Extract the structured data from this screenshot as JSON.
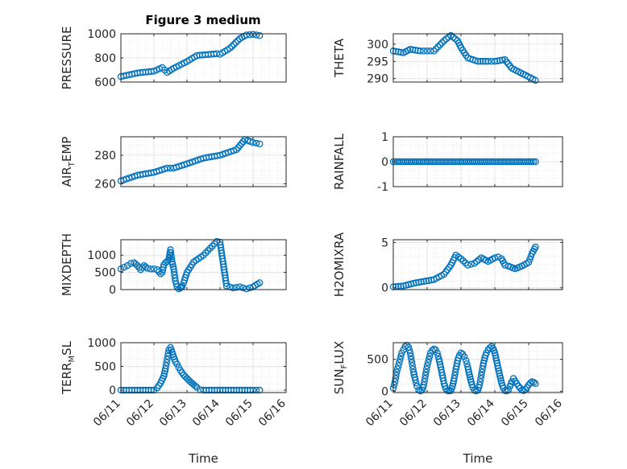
{
  "figure": {
    "title": "Figure 3 medium"
  },
  "x_ticks": [
    "06/11",
    "06/12",
    "06/13",
    "06/14",
    "06/15",
    "06/16"
  ],
  "x_label": "Time",
  "chart_data": [
    {
      "type": "scatter",
      "ylabel": "PRESSURE",
      "xlim": [
        "06/11",
        "06/16"
      ],
      "ylim": [
        600,
        1000
      ],
      "yticks": [
        600,
        800,
        1000
      ],
      "grid": true,
      "series": [
        {
          "x": [
            11.0,
            11.5,
            12.0,
            12.25,
            12.4,
            12.6,
            13.0,
            13.3,
            13.9,
            14.0,
            14.3,
            14.6,
            14.8,
            15.0,
            15.2
          ],
          "y": [
            645,
            675,
            690,
            720,
            680,
            715,
            770,
            820,
            835,
            830,
            880,
            960,
            990,
            995,
            985
          ]
        }
      ]
    },
    {
      "type": "scatter",
      "ylabel": "THETA",
      "xlim": [
        "06/11",
        "06/16"
      ],
      "ylim": [
        289,
        303
      ],
      "yticks": [
        290,
        295,
        300
      ],
      "grid": true,
      "series": [
        {
          "x": [
            11.0,
            11.3,
            11.5,
            11.8,
            12.0,
            12.2,
            12.5,
            12.7,
            12.9,
            13.0,
            13.2,
            13.5,
            13.8,
            14.0,
            14.3,
            14.5,
            14.7,
            14.9,
            15.2
          ],
          "y": [
            298,
            297.5,
            298.5,
            298,
            298,
            298,
            301,
            302.5,
            301,
            299,
            296,
            295,
            295,
            295,
            295.5,
            293,
            292,
            291,
            289.5
          ]
        }
      ]
    },
    {
      "type": "scatter",
      "ylabel": "AIR_TEMP",
      "xlim": [
        "06/11",
        "06/16"
      ],
      "ylim": [
        258,
        293
      ],
      "yticks": [
        260,
        280
      ],
      "grid": true,
      "series": [
        {
          "x": [
            11.0,
            11.5,
            12.0,
            12.4,
            12.6,
            13.0,
            13.5,
            14.0,
            14.5,
            14.75,
            15.0,
            15.2
          ],
          "y": [
            262,
            266,
            268,
            271,
            271,
            274,
            278,
            280,
            284,
            291,
            289,
            288
          ]
        }
      ]
    },
    {
      "type": "scatter",
      "ylabel": "RAINFALL",
      "xlim": [
        "06/11",
        "06/16"
      ],
      "ylim": [
        -1,
        1
      ],
      "yticks": [
        -1,
        0,
        1
      ],
      "grid": true,
      "series": [
        {
          "x": [
            11.0,
            15.2
          ],
          "y": [
            0,
            0
          ]
        }
      ]
    },
    {
      "type": "scatter",
      "ylabel": "MIXDEPTH",
      "xlim": [
        "06/11",
        "06/16"
      ],
      "ylim": [
        0,
        1450
      ],
      "yticks": [
        0,
        500,
        1000
      ],
      "grid": true,
      "series": [
        {
          "x": [
            11.0,
            11.1,
            11.2,
            11.3,
            11.4,
            11.5,
            11.6,
            11.7,
            11.8,
            11.9,
            12.0,
            12.1,
            12.15,
            12.2,
            12.25,
            12.3,
            12.35,
            12.45,
            12.5,
            12.55,
            12.6,
            12.65,
            12.7,
            12.75,
            12.8,
            12.83,
            12.86,
            12.9,
            12.95,
            13.0,
            13.1,
            13.2,
            13.5,
            13.7,
            13.9,
            14.0,
            14.2,
            14.4,
            14.6,
            14.8,
            15.0,
            15.2
          ],
          "y": [
            600,
            650,
            700,
            760,
            780,
            700,
            580,
            700,
            620,
            600,
            600,
            580,
            520,
            460,
            500,
            720,
            780,
            860,
            1160,
            800,
            600,
            250,
            80,
            20,
            50,
            70,
            100,
            200,
            350,
            500,
            650,
            800,
            1000,
            1200,
            1400,
            1380,
            100,
            50,
            80,
            20,
            80,
            200
          ]
        }
      ]
    },
    {
      "type": "scatter",
      "ylabel": "H2OMIXRA",
      "xlim": [
        "06/11",
        "06/16"
      ],
      "ylim": [
        -0.2,
        5.3
      ],
      "yticks": [
        0,
        5
      ],
      "grid": true,
      "series": [
        {
          "x": [
            11.0,
            11.3,
            11.6,
            11.9,
            12.2,
            12.5,
            12.7,
            12.85,
            13.0,
            13.2,
            13.4,
            13.6,
            13.8,
            14.0,
            14.1,
            14.2,
            14.3,
            14.4,
            14.6,
            14.8,
            15.0,
            15.1,
            15.2
          ],
          "y": [
            0.1,
            0.2,
            0.5,
            0.7,
            0.9,
            1.5,
            2.5,
            3.6,
            3.2,
            2.5,
            2.7,
            3.3,
            2.9,
            3.3,
            3.4,
            3.2,
            2.5,
            2.4,
            2.1,
            2.4,
            2.8,
            3.8,
            4.5
          ]
        }
      ]
    },
    {
      "type": "scatter",
      "ylabel": "TERR_MSL",
      "xlim": [
        "06/11",
        "06/16"
      ],
      "ylim": [
        -50,
        1000
      ],
      "yticks": [
        0,
        500,
        1000
      ],
      "grid": true,
      "series": [
        {
          "x": [
            11.0,
            11.5,
            12.0,
            12.1,
            12.2,
            12.3,
            12.35,
            12.4,
            12.45,
            12.5,
            12.55,
            12.6,
            12.65,
            12.7,
            12.75,
            12.8,
            12.9,
            13.0,
            13.1,
            13.2,
            13.3,
            13.4,
            13.5,
            14.0,
            14.5,
            15.0,
            15.2
          ],
          "y": [
            0,
            0,
            0,
            50,
            150,
            300,
            450,
            650,
            850,
            900,
            800,
            700,
            600,
            550,
            480,
            420,
            320,
            250,
            180,
            120,
            60,
            10,
            0,
            0,
            0,
            0,
            0
          ]
        }
      ]
    },
    {
      "type": "scatter",
      "ylabel": "SUN_FLUX",
      "xlim": [
        "06/11",
        "06/16"
      ],
      "ylim": [
        -20,
        760
      ],
      "yticks": [
        0,
        500
      ],
      "grid": true,
      "series": [
        {
          "x": [
            11.0,
            11.05,
            11.1,
            11.15,
            11.2,
            11.25,
            11.3,
            11.35,
            11.4,
            11.45,
            11.5,
            11.55,
            11.6,
            11.65,
            11.7,
            11.75,
            11.8,
            11.85,
            11.9,
            11.95,
            12.0,
            12.05,
            12.1,
            12.15,
            12.2,
            12.25,
            12.3,
            12.35,
            12.4,
            12.45,
            12.5,
            12.55,
            12.6,
            12.65,
            12.7,
            12.75,
            12.8,
            12.85,
            12.9,
            12.95,
            13.0,
            13.05,
            13.1,
            13.15,
            13.2,
            13.25,
            13.3,
            13.35,
            13.4,
            13.45,
            13.5,
            13.55,
            13.6,
            13.65,
            13.7,
            13.75,
            13.8,
            13.85,
            13.9,
            13.95,
            14.0,
            14.05,
            14.1,
            14.15,
            14.2,
            14.25,
            14.3,
            14.35,
            14.4,
            14.45,
            14.5,
            14.55,
            14.6,
            14.65,
            14.7,
            14.75,
            14.8,
            14.85,
            14.9,
            14.95,
            15.0,
            15.05,
            15.1,
            15.15,
            15.2
          ],
          "y": [
            50,
            150,
            300,
            400,
            500,
            600,
            650,
            700,
            720,
            690,
            600,
            450,
            300,
            180,
            80,
            20,
            5,
            20,
            100,
            250,
            400,
            500,
            600,
            640,
            660,
            650,
            600,
            500,
            380,
            250,
            120,
            40,
            10,
            5,
            10,
            80,
            200,
            350,
            480,
            560,
            600,
            580,
            540,
            480,
            380,
            260,
            150,
            60,
            15,
            5,
            20,
            100,
            250,
            400,
            520,
            600,
            650,
            680,
            700,
            670,
            600,
            480,
            360,
            240,
            130,
            50,
            10,
            5,
            20,
            80,
            150,
            200,
            160,
            120,
            80,
            50,
            20,
            10,
            30,
            60,
            100,
            130,
            150,
            140,
            120
          ]
        }
      ]
    }
  ]
}
